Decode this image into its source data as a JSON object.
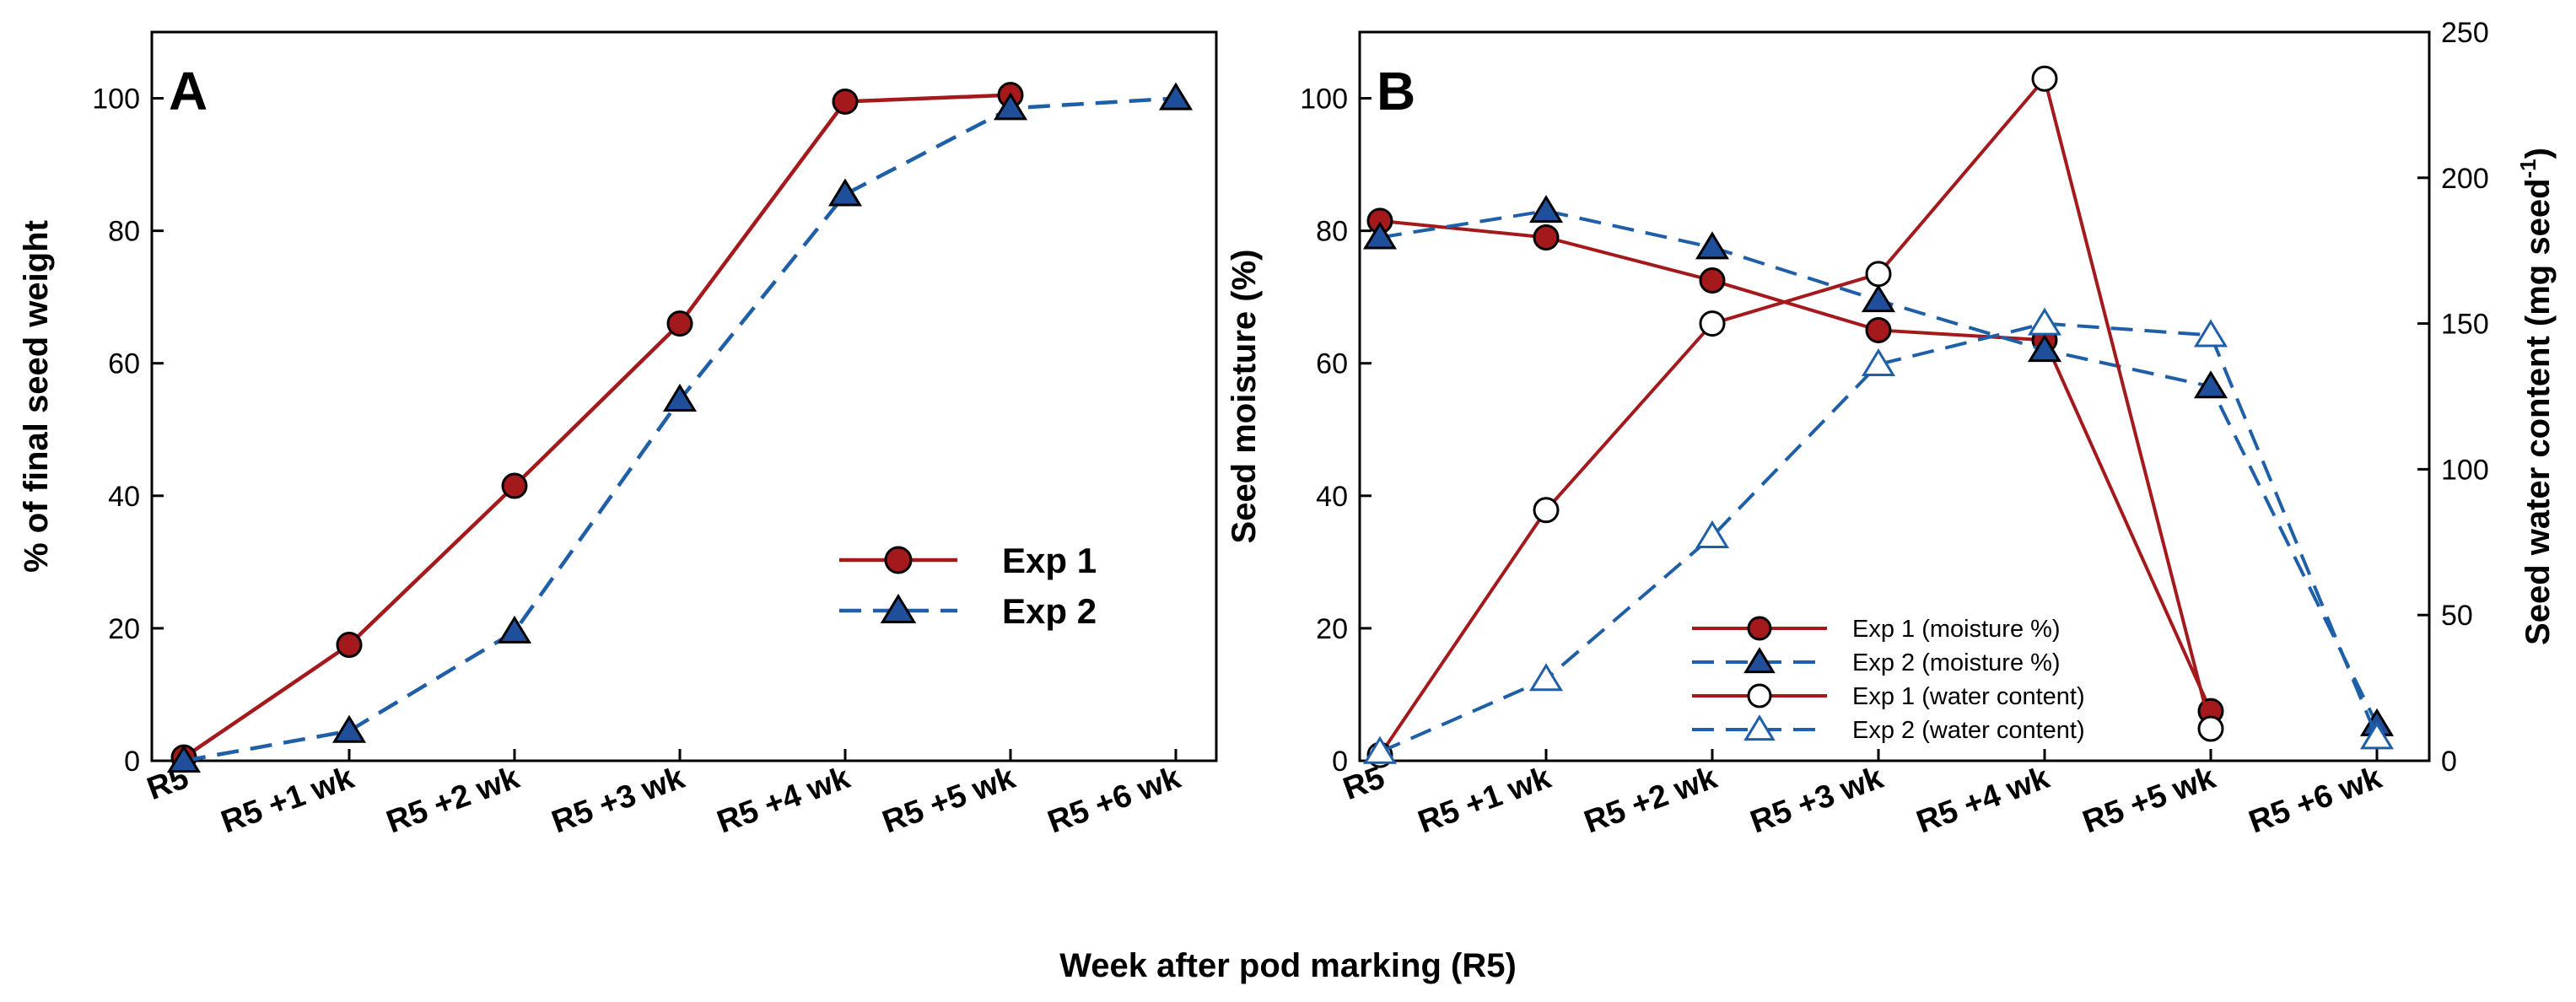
{
  "figure": {
    "shared_xlabel": "Week after pod marking (R5)",
    "colors": {
      "exp1": "#a3191c",
      "exp2": "#1f5fa8",
      "exp2_fill": "#1f4e9a"
    }
  },
  "chart_data": [
    {
      "panel": "A",
      "type": "line",
      "title": "",
      "categories": [
        "R5",
        "R5 +1 wk",
        "R5 +2 wk",
        "R5 +3 wk",
        "R5 +4 wk",
        "R5 +5 wk",
        "R5 +6 wk"
      ],
      "ylabel": "% of final seed weight",
      "ylim": [
        0,
        110
      ],
      "yticks": [
        0,
        20,
        40,
        60,
        80,
        100
      ],
      "grid": false,
      "legend_position": "lower-right",
      "series": [
        {
          "name": "Exp 1",
          "marker": "circle",
          "style": "solid",
          "color": "#a3191c",
          "values": [
            0.5,
            17.5,
            41.5,
            66,
            99.5,
            100.5,
            null
          ]
        },
        {
          "name": "Exp 2",
          "marker": "triangle",
          "style": "dashed",
          "color": "#1f5fa8",
          "values": [
            0,
            4.5,
            19.5,
            54.5,
            85.5,
            98.5,
            100
          ]
        }
      ]
    },
    {
      "panel": "B",
      "type": "line",
      "title": "",
      "categories": [
        "R5",
        "R5 +1 wk",
        "R5 +2 wk",
        "R5 +3 wk",
        "R5 +4 wk",
        "R5 +5 wk",
        "R5 +6 wk"
      ],
      "ylabel": "Seed moisture (%)",
      "ylim": [
        0,
        110
      ],
      "yticks": [
        0,
        20,
        40,
        60,
        80,
        100
      ],
      "y2label_main": "Seed water content (mg seed",
      "y2label_sup": "-1",
      "y2label_end": ")",
      "y2lim": [
        0,
        250
      ],
      "y2ticks": [
        0,
        50,
        100,
        150,
        200,
        250
      ],
      "grid": false,
      "legend_position": "lower-center",
      "series": [
        {
          "name": "Exp 1 (moisture %)",
          "axis": "left",
          "marker": "circle",
          "filled": true,
          "style": "solid",
          "color": "#a3191c",
          "values": [
            81.5,
            79,
            72.5,
            65,
            63.5,
            7.5,
            null
          ]
        },
        {
          "name": "Exp 2 (moisture %)",
          "axis": "left",
          "marker": "triangle",
          "filled": true,
          "style": "dashed",
          "color": "#1f5fa8",
          "values": [
            79,
            83,
            77.5,
            69.5,
            62,
            56.5,
            5.5
          ]
        },
        {
          "name": "Exp 1 (water content)",
          "axis": "right",
          "marker": "circle",
          "filled": false,
          "style": "solid",
          "color": "#a3191c",
          "values": [
            2,
            86,
            150,
            167,
            234,
            11,
            null
          ]
        },
        {
          "name": "Exp 2 (water content)",
          "axis": "right",
          "marker": "triangle",
          "filled": false,
          "style": "dashed",
          "color": "#1f5fa8",
          "values": [
            3,
            28,
            77,
            136,
            150,
            146,
            8
          ]
        }
      ]
    }
  ]
}
